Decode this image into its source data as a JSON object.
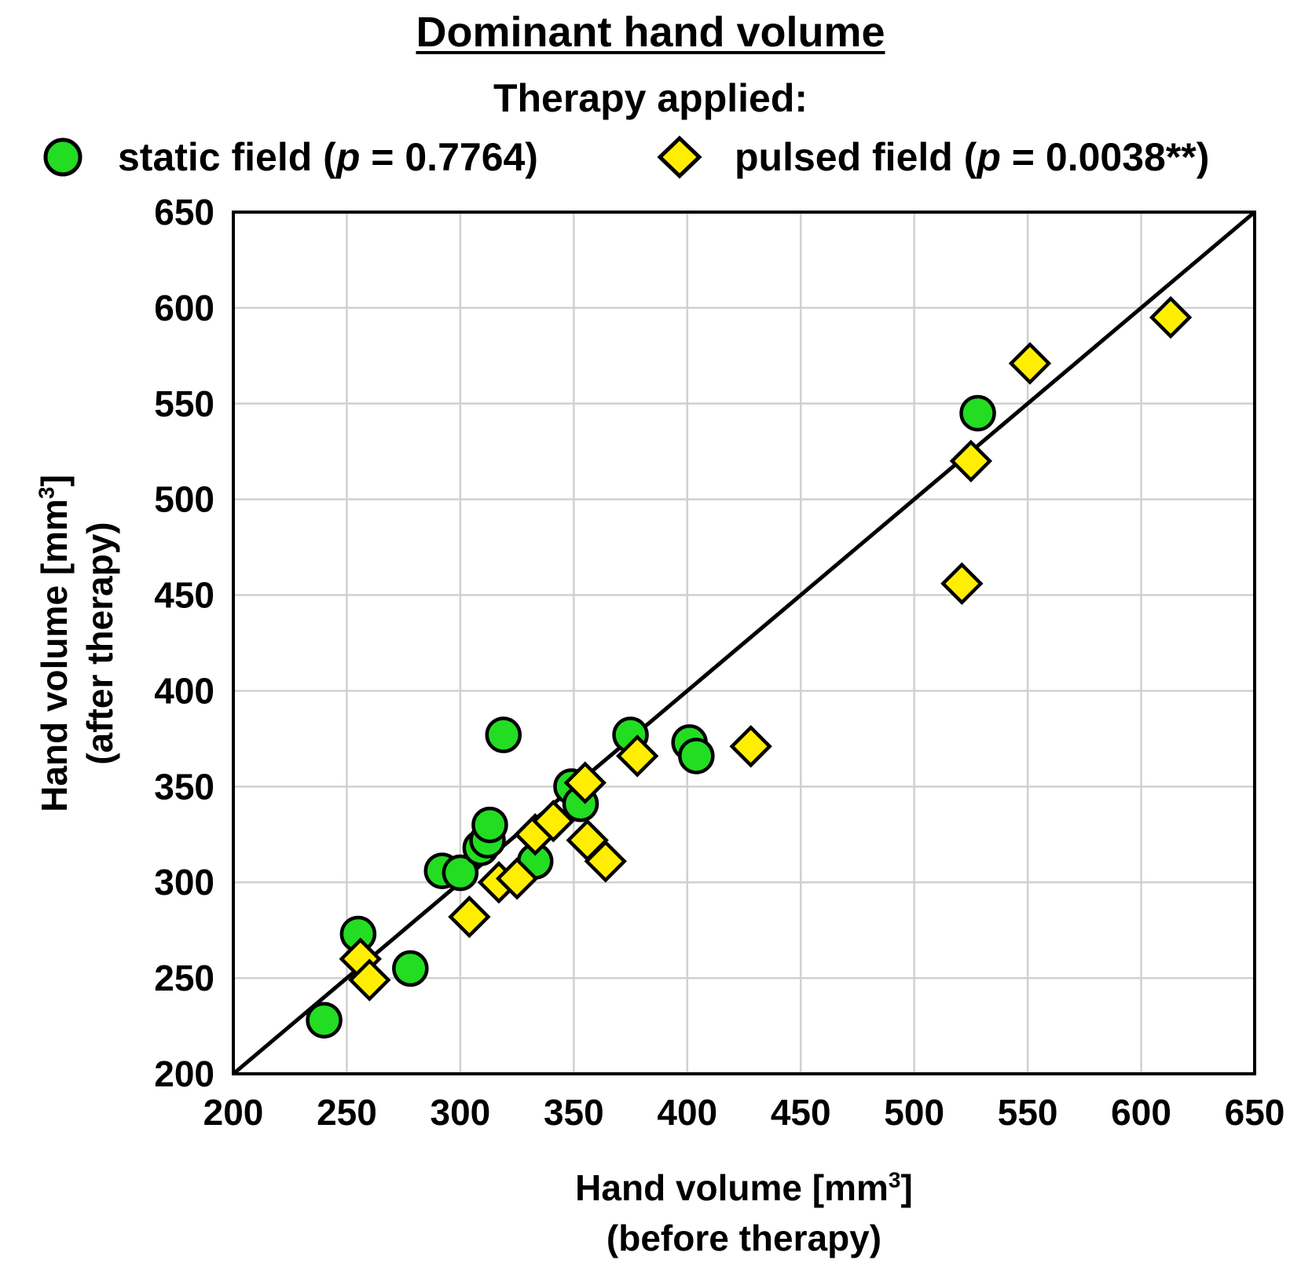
{
  "chart_data": {
    "type": "scatter",
    "title": "Dominant hand volume",
    "legend_title": "Therapy applied:",
    "legend_placement": "top",
    "xlabel_line1": "Hand volume [mm",
    "xlabel_sup": "3",
    "xlabel_line1_end": "]",
    "xlabel_line2": "(before therapy)",
    "ylabel_line1": "Hand volume [mm",
    "ylabel_sup": "3",
    "ylabel_line1_end": "]",
    "ylabel_line2": "(after therapy)",
    "xlim": [
      200,
      650
    ],
    "ylim": [
      200,
      650
    ],
    "xticks": [
      200,
      250,
      300,
      350,
      400,
      450,
      500,
      550,
      600,
      650
    ],
    "yticks": [
      200,
      250,
      300,
      350,
      400,
      450,
      500,
      550,
      600,
      650
    ],
    "grid": true,
    "reference_line": {
      "x": [
        200,
        650
      ],
      "y": [
        200,
        650
      ]
    },
    "series": [
      {
        "name_prefix": "static field (",
        "name_p": "p",
        "name_suffix": " = 0.7764)",
        "marker": "circle",
        "color": "#22dd22",
        "points": [
          [
            240,
            228
          ],
          [
            255,
            273
          ],
          [
            278,
            255
          ],
          [
            292,
            306
          ],
          [
            300,
            305
          ],
          [
            309,
            318
          ],
          [
            312,
            322
          ],
          [
            313,
            330
          ],
          [
            319,
            377
          ],
          [
            333,
            311
          ],
          [
            349,
            350
          ],
          [
            353,
            341
          ],
          [
            375,
            377
          ],
          [
            401,
            373
          ],
          [
            404,
            366
          ],
          [
            528,
            545
          ]
        ]
      },
      {
        "name_prefix": "pulsed field (",
        "name_p": "p",
        "name_suffix": " = 0.0038**)",
        "marker": "diamond",
        "color": "#ffee00",
        "points": [
          [
            256,
            260
          ],
          [
            260,
            249
          ],
          [
            304,
            282
          ],
          [
            317,
            300
          ],
          [
            325,
            302
          ],
          [
            333,
            325
          ],
          [
            341,
            332
          ],
          [
            355,
            352
          ],
          [
            356,
            322
          ],
          [
            364,
            311
          ],
          [
            378,
            366
          ],
          [
            428,
            371
          ],
          [
            521,
            456
          ],
          [
            525,
            520
          ],
          [
            551,
            571
          ],
          [
            613,
            595
          ]
        ]
      }
    ]
  }
}
